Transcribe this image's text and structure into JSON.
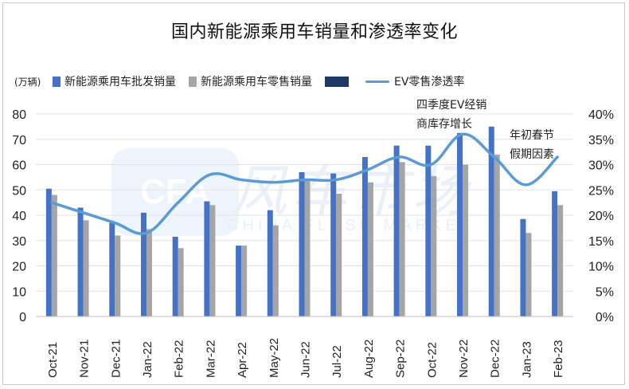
{
  "title": "国内新能源乘用车销量和渗透率变化",
  "unit_label": "(万辆)",
  "watermark": {
    "badge": "CFA",
    "cn": "风车市场",
    "en": "CHINA FLASH MARKET"
  },
  "notes": [
    {
      "lines": [
        "四季度EV经销",
        "商库存增长"
      ]
    },
    {
      "lines": [
        "年初春节",
        "假期因素"
      ]
    }
  ],
  "colors": {
    "wholesale": "#4472c4",
    "retail": "#a5a5a5",
    "ev_legend": "#1f3864",
    "ev_line": "#5b9bd5"
  },
  "chart_data": {
    "type": "bar",
    "title": "国内新能源乘用车销量和渗透率变化",
    "categories": [
      "Oct-21",
      "Nov-21",
      "Dec-21",
      "Jan-22",
      "Feb-22",
      "Mar-22",
      "Apr-22",
      "May-22",
      "Jun-22",
      "Jul-22",
      "Aug-22",
      "Sep-22",
      "Oct-22",
      "Nov-22",
      "Dec-22",
      "Jan-23",
      "Feb-23"
    ],
    "series": [
      {
        "name": "新能源乘用车批发销量",
        "axis": "left",
        "type": "bar",
        "values": [
          50.5,
          43,
          37,
          41,
          31.5,
          45.5,
          28,
          42,
          57,
          56.5,
          63,
          67.5,
          67.5,
          72.5,
          75,
          38.5,
          49.5
        ]
      },
      {
        "name": "新能源乘用车零售销量",
        "axis": "left",
        "type": "bar",
        "values": [
          48,
          38,
          32,
          34.5,
          27,
          44,
          28,
          36,
          53.5,
          48.5,
          53,
          61,
          55.5,
          60,
          64,
          33,
          44
        ]
      },
      {
        "name": "EV零售渗透率",
        "axis": "right",
        "type": "line",
        "values": [
          22.5,
          20.5,
          18.5,
          16.5,
          22.5,
          28,
          27,
          26.5,
          27,
          27,
          29,
          31.5,
          30,
          36,
          31.5,
          26,
          31.5
        ]
      }
    ],
    "left_axis": {
      "min": 0,
      "max": 80,
      "ticks": [
        "0",
        "10",
        "20",
        "30",
        "40",
        "50",
        "60",
        "70",
        "80"
      ]
    },
    "right_axis": {
      "min": 0,
      "max": 40,
      "ticks": [
        "0%",
        "5%",
        "10%",
        "15%",
        "20%",
        "25%",
        "30%",
        "35%",
        "40%"
      ]
    },
    "legend": [
      {
        "label": "新能源乘用车批发销量",
        "kind": "bar",
        "color": "#4472c4"
      },
      {
        "label": "新能源乘用车零售销量",
        "kind": "bar",
        "color": "#a5a5a5"
      },
      {
        "label": "",
        "kind": "bar",
        "color": "#1f3864"
      },
      {
        "label": "EV零售渗透率",
        "kind": "line",
        "color": "#5b9bd5"
      }
    ]
  }
}
